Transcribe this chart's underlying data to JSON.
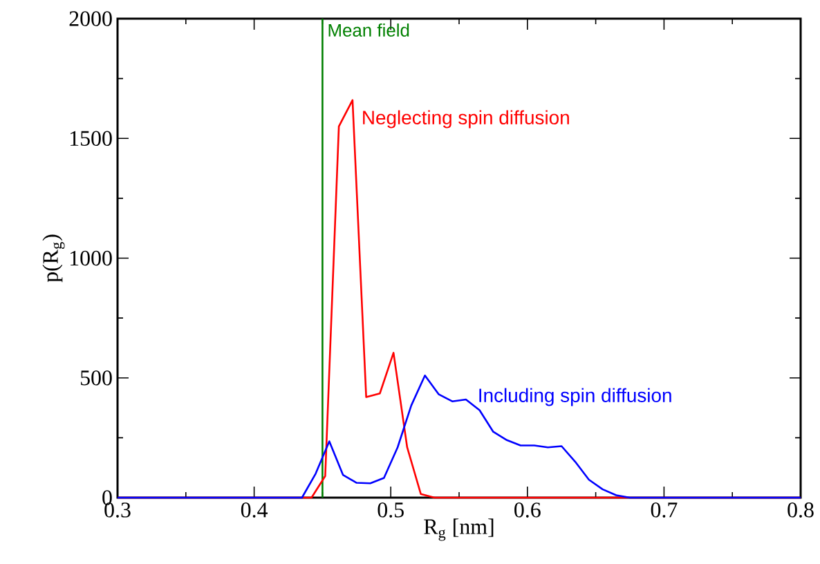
{
  "chart_data": {
    "type": "line",
    "xlabel": "R$_{g}$ [nm]",
    "ylabel": "p(R$_{g}$)",
    "xlim": [
      0.3,
      0.8
    ],
    "xticks": [
      0.3,
      0.4,
      0.5,
      0.6,
      0.7,
      0.8
    ],
    "ylim": [
      0,
      2000
    ],
    "yticks": [
      0,
      500,
      1000,
      1500,
      2000
    ],
    "marker": "none",
    "line_style": "solid",
    "grid": false,
    "series": [
      {
        "name": "Neglecting spin diffusion",
        "color": "#ff0000",
        "x": [
          0.3,
          0.442,
          0.452,
          0.462,
          0.472,
          0.482,
          0.492,
          0.502,
          0.512,
          0.522,
          0.532,
          0.8
        ],
        "values": [
          0,
          0,
          90,
          1550,
          1660,
          420,
          435,
          605,
          210,
          15,
          0,
          0
        ]
      },
      {
        "name": "Including spin diffusion",
        "color": "#0000ff",
        "x": [
          0.3,
          0.435,
          0.445,
          0.455,
          0.465,
          0.475,
          0.485,
          0.495,
          0.505,
          0.515,
          0.525,
          0.535,
          0.545,
          0.555,
          0.565,
          0.575,
          0.585,
          0.595,
          0.605,
          0.615,
          0.625,
          0.635,
          0.645,
          0.655,
          0.665,
          0.675,
          0.8
        ],
        "values": [
          0,
          0,
          100,
          235,
          95,
          62,
          60,
          82,
          210,
          385,
          510,
          432,
          402,
          410,
          365,
          275,
          240,
          218,
          218,
          210,
          215,
          150,
          75,
          35,
          10,
          0,
          0
        ]
      }
    ],
    "ref_lines": [
      {
        "axis": "x",
        "value": 0.45,
        "label": "Mean field",
        "color": "#008000"
      }
    ]
  }
}
